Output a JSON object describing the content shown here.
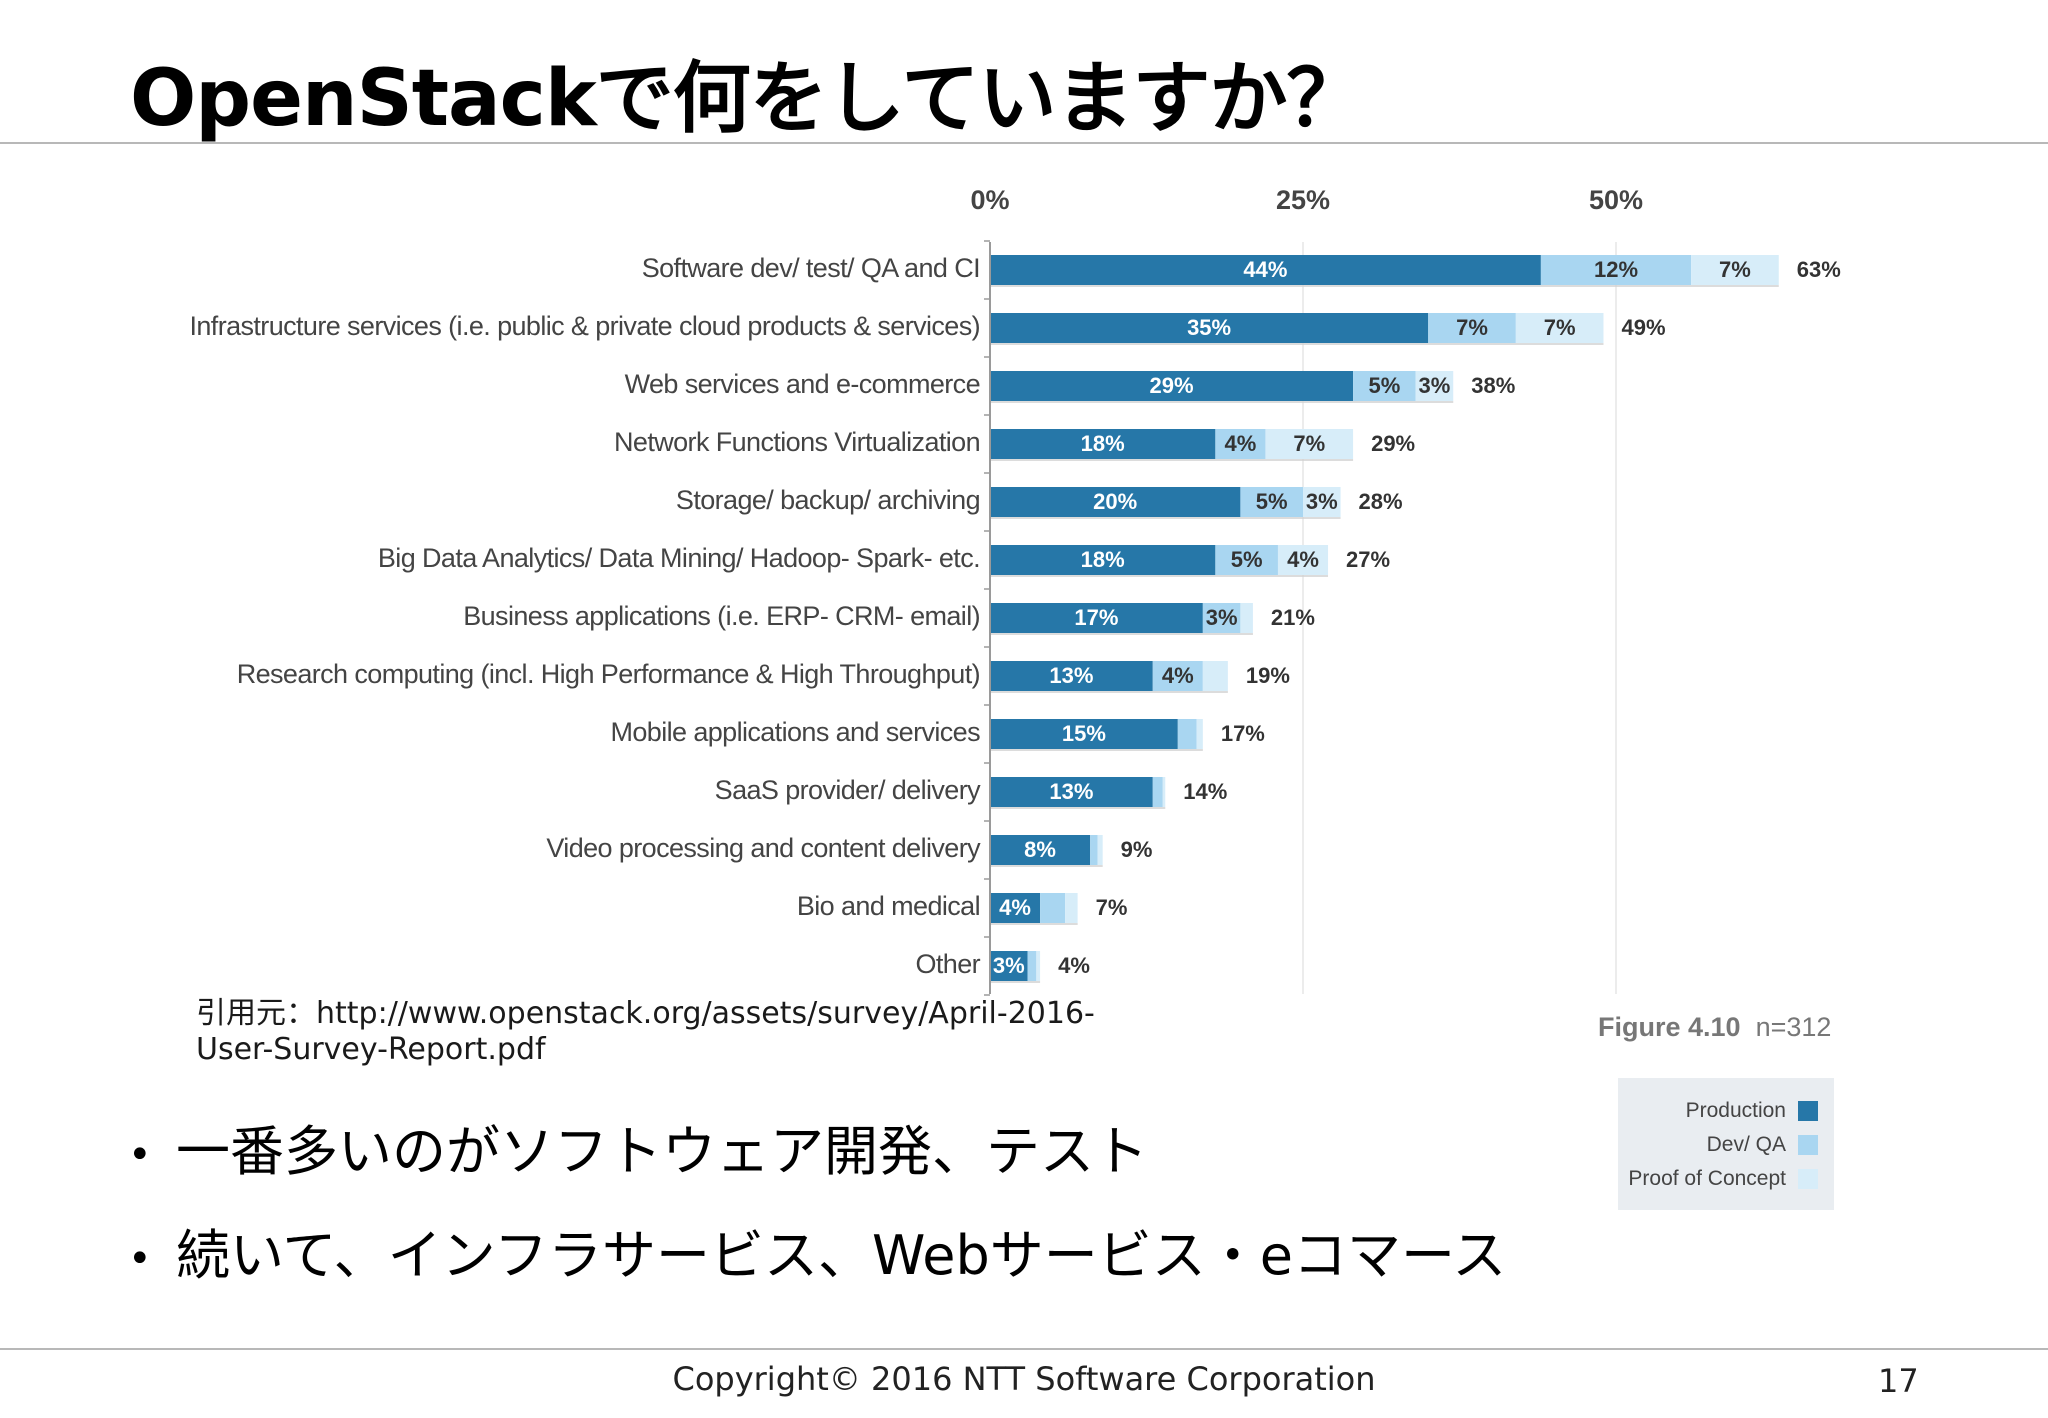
{
  "slide": {
    "title": "OpenStackで何をしていますか？",
    "citation_line1": "引用元：http://www.openstack.org/assets/survey/April-2016-",
    "citation_line2": "User-Survey-Report.pdf",
    "bullets": [
      "一番多いのがソフトウェア開発、テスト",
      "続いて、インフラサービス、Webサービス・eコマース"
    ],
    "footer": "Copyright© 2016 NTT Software Corporation",
    "page_number": "17"
  },
  "chart_data": {
    "type": "bar",
    "orientation": "horizontal",
    "stacked": true,
    "figure_label": "Figure 4.10",
    "sample_size": "n=312",
    "x_tick_labels": [
      "0%",
      "25%",
      "50%"
    ],
    "xlim": [
      0,
      63
    ],
    "grid": true,
    "legend_position": "bottom-right",
    "categories": [
      "Software dev/ test/ QA and CI",
      "Infrastructure services (i.e. public & private cloud products & services)",
      "Web services and e-commerce",
      "Network Functions Virtualization",
      "Storage/  backup/ archiving",
      "Big Data Analytics/ Data Mining/ Hadoop- Spark- etc.",
      "Business applications (i.e. ERP- CRM- email)",
      "Research computing (incl. High Performance & High Throughput)",
      "Mobile applications and services",
      "SaaS provider/ delivery",
      "Video processing and content delivery",
      "Bio and medical",
      "Other"
    ],
    "series": [
      {
        "name": "Production",
        "color": "#2677a8",
        "values": [
          44,
          35,
          29,
          18,
          20,
          18,
          17,
          13,
          15,
          13,
          8,
          4,
          3
        ],
        "labels": [
          "44%",
          "35%",
          "29%",
          "18%",
          "20%",
          "18%",
          "17%",
          "13%",
          "15%",
          "13%",
          "8%",
          "4%",
          "3%"
        ]
      },
      {
        "name": "Dev/ QA",
        "color": "#a9d6f1",
        "values": [
          12,
          7,
          5,
          4,
          5,
          5,
          3,
          4,
          1.5,
          0.8,
          0.6,
          2,
          0.7
        ],
        "labels": [
          "12%",
          "7%",
          "5%",
          "4%",
          "5%",
          "5%",
          "3%",
          "4%",
          "",
          "",
          "",
          "",
          ""
        ]
      },
      {
        "name": "Proof of Concept",
        "color": "#d7edf9",
        "values": [
          7,
          7,
          3,
          7,
          3,
          4,
          1,
          2,
          0.5,
          0.2,
          0.4,
          1,
          0.3
        ],
        "labels": [
          "7%",
          "7%",
          "3%",
          "7%",
          "3%",
          "4%",
          "",
          "",
          "",
          "",
          "",
          "",
          ""
        ]
      }
    ],
    "totals": [
      "63%",
      "49%",
      "38%",
      "29%",
      "28%",
      "27%",
      "21%",
      "19%",
      "17%",
      "14%",
      "9%",
      "7%",
      "4%"
    ]
  }
}
